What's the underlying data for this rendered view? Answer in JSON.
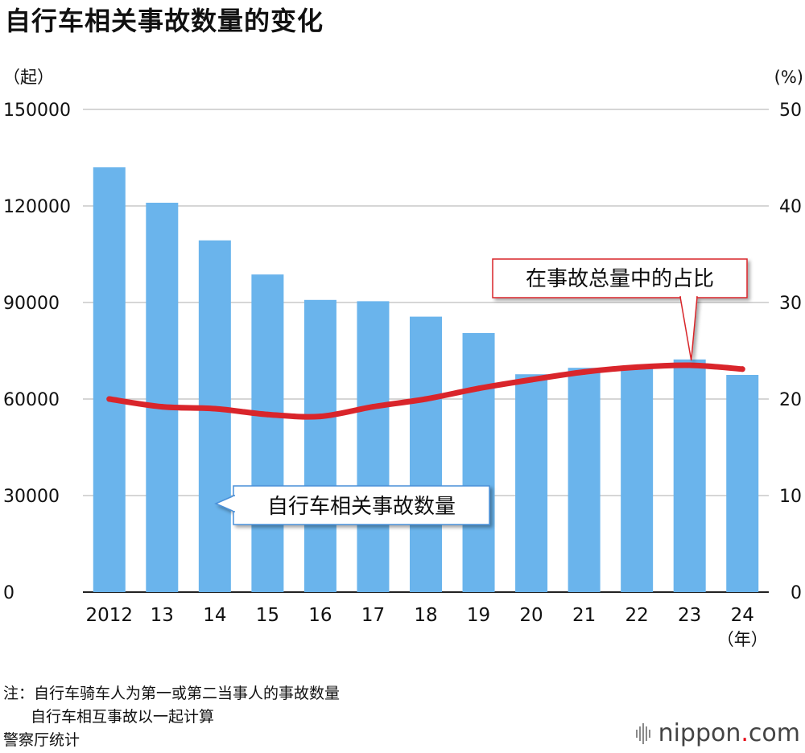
{
  "title": "自行车相关事故数量的变化",
  "chart_data": {
    "type": "bar+line",
    "categories": [
      "2012",
      "13",
      "14",
      "15",
      "16",
      "17",
      "18",
      "19",
      "20",
      "21",
      "22",
      "23",
      "24"
    ],
    "x_unit": "（年）",
    "bar_series": {
      "label": "自行车相关事故数量",
      "values": [
        132000,
        121000,
        109300,
        98700,
        90800,
        90400,
        85600,
        80500,
        67700,
        69700,
        69900,
        72300,
        67500
      ],
      "color": "#6ab4ec"
    },
    "line_series": {
      "label": "在事故总量中的占比",
      "values": [
        20.0,
        19.2,
        19.0,
        18.4,
        18.2,
        19.2,
        20.0,
        21.1,
        22.0,
        22.8,
        23.3,
        23.5,
        23.1
      ],
      "color": "#d9252b"
    },
    "y_left": {
      "unit": "（起）",
      "ticks": [
        0,
        30000,
        60000,
        90000,
        120000,
        150000
      ],
      "lim": [
        0,
        150000
      ]
    },
    "y_right": {
      "unit": "(%)",
      "ticks": [
        0,
        10,
        20,
        30,
        40,
        50
      ],
      "lim": [
        0,
        50
      ]
    },
    "grid": true
  },
  "notes": {
    "line1": "注：自行车骑车人为第一或第二当事人的事故数量",
    "line2": "自行车相互事故以一起计算",
    "source": "警察厅统计"
  },
  "brand": {
    "prefix": "nippon",
    "dot": ".",
    "suffix": "com"
  }
}
